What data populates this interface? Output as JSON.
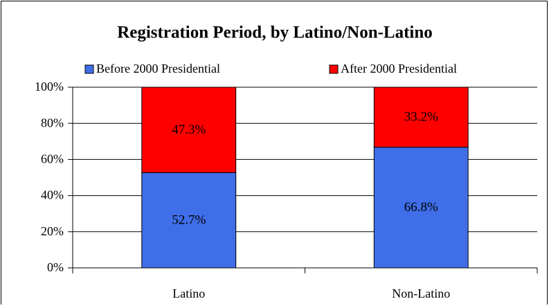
{
  "chart_data": {
    "type": "stacked_bar",
    "title": "Registration Period, by Latino/Non-Latino",
    "categories": [
      "Latino",
      "Non-Latino"
    ],
    "series": [
      {
        "name": "Before 2000 Presidential",
        "color": "#3f6ee8",
        "values": [
          52.7,
          66.8
        ],
        "value_labels": [
          "52.7%",
          "66.8%"
        ]
      },
      {
        "name": "After 2000 Presidential",
        "color": "#ff0000",
        "values": [
          47.3,
          33.2
        ],
        "value_labels": [
          "47.3%",
          "33.2%"
        ]
      }
    ],
    "ylim": [
      0,
      100
    ],
    "yticks": [
      {
        "value": 0,
        "label": "0%"
      },
      {
        "value": 20,
        "label": "20%"
      },
      {
        "value": 40,
        "label": "40%"
      },
      {
        "value": 60,
        "label": "60%"
      },
      {
        "value": 80,
        "label": "80%"
      },
      {
        "value": 100,
        "label": "100%"
      }
    ],
    "grid": true,
    "legend": "top"
  }
}
